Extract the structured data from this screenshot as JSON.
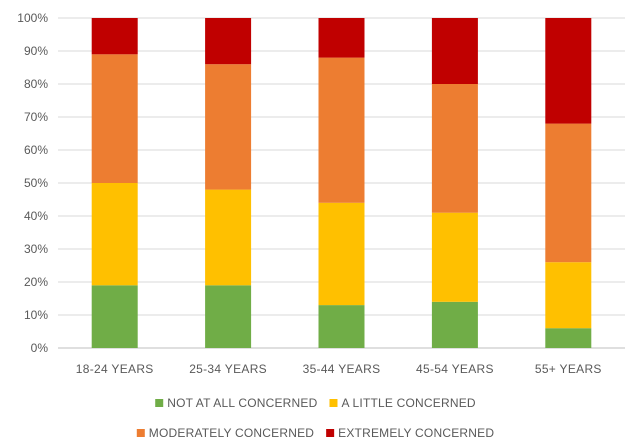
{
  "chart_data": {
    "type": "bar",
    "stacked": true,
    "percent": true,
    "categories": [
      "18-24 YEARS",
      "25-34 YEARS",
      "35-44 YEARS",
      "45-54 YEARS",
      "55+ YEARS"
    ],
    "series": [
      {
        "name": "NOT AT ALL CONCERNED",
        "color": "#70ad47",
        "values": [
          19,
          19,
          13,
          14,
          6
        ]
      },
      {
        "name": "A LITTLE CONCERNED",
        "color": "#ffc000",
        "values": [
          31,
          29,
          31,
          27,
          20
        ]
      },
      {
        "name": "MODERATELY CONCERNED",
        "color": "#ed7d31",
        "values": [
          39,
          38,
          44,
          39,
          42
        ]
      },
      {
        "name": "EXTREMELY CONCERNED",
        "color": "#c00000",
        "values": [
          11,
          14,
          12,
          20,
          32
        ]
      }
    ],
    "y_ticks": [
      "0%",
      "10%",
      "20%",
      "30%",
      "40%",
      "50%",
      "60%",
      "70%",
      "80%",
      "90%",
      "100%"
    ],
    "ylim": [
      0,
      100
    ],
    "grid": true,
    "legend_position": "bottom",
    "title": "",
    "xlabel": "",
    "ylabel": ""
  }
}
